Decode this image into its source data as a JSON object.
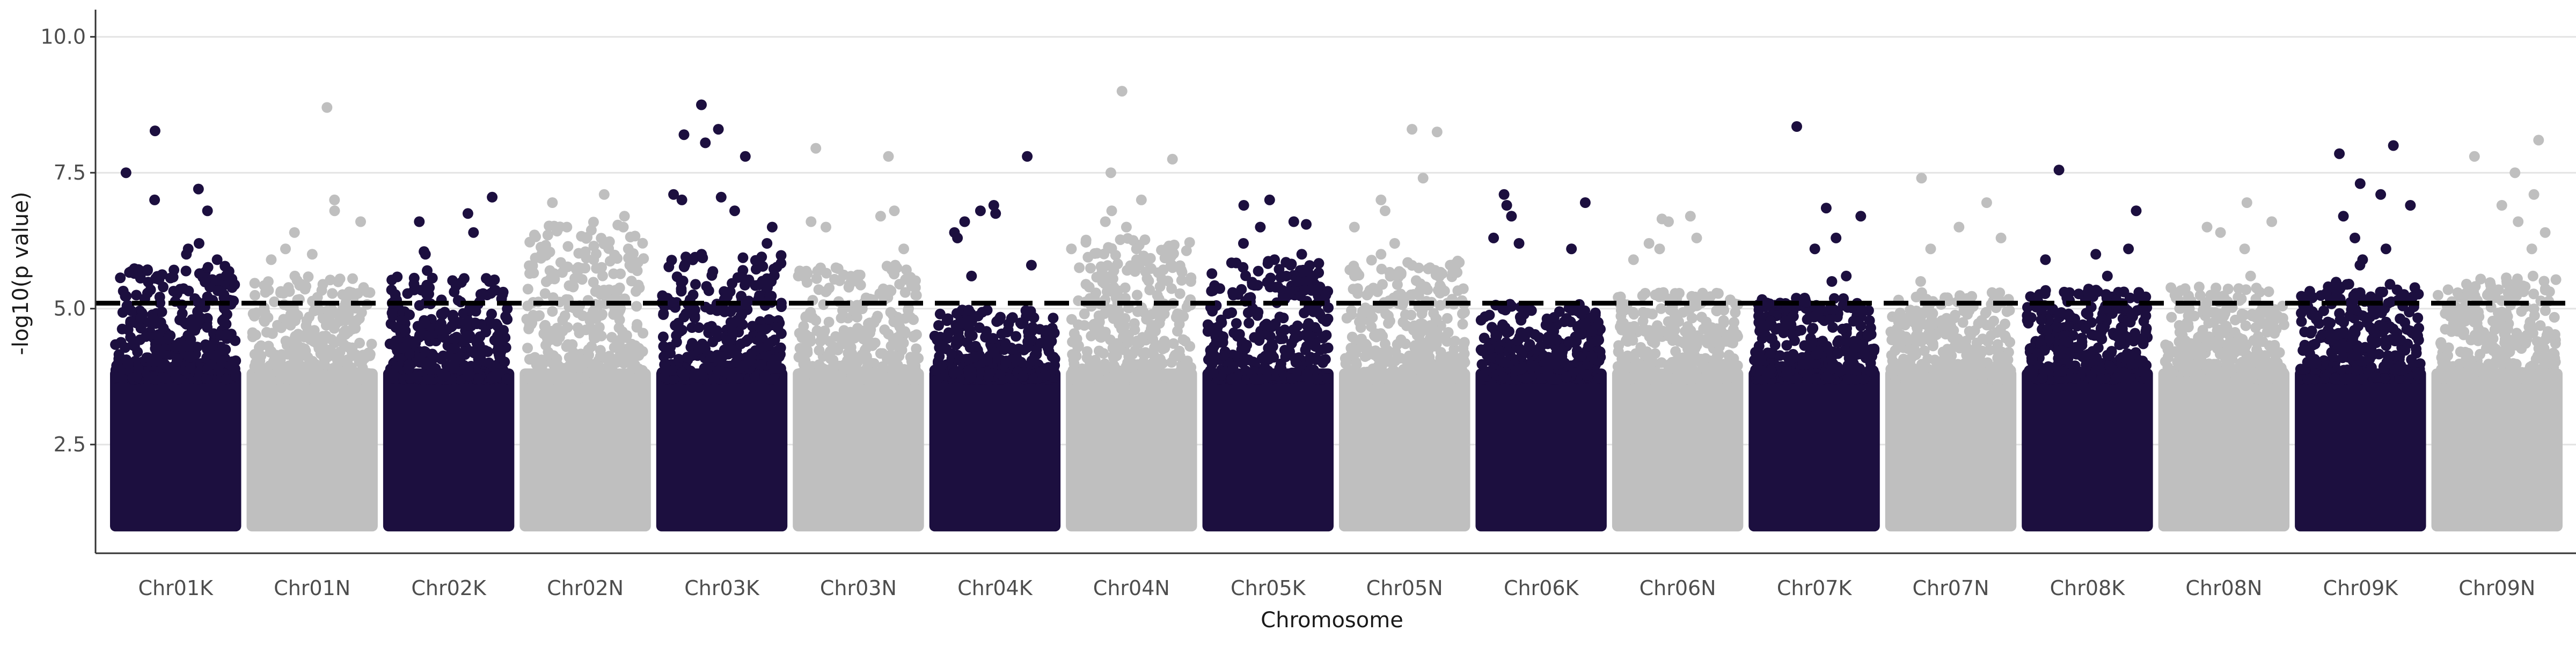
{
  "chart_data": {
    "type": "scatter",
    "title": "",
    "xlabel": "Chromosome",
    "ylabel": "-log10(p value)",
    "ylim": [
      0.5,
      10.5
    ],
    "yticks": [
      2.5,
      5.0,
      7.5,
      10.0
    ],
    "ytick_labels": [
      "2.5",
      "5.0",
      "7.5",
      "10.0"
    ],
    "grid": "horizontal major lines only",
    "legend": "none",
    "threshold": 5.1,
    "threshold_style": "dashed black",
    "colors": {
      "odd": "#1c0f3f",
      "even": "#bfbfbf"
    },
    "categories": [
      "Chr01K",
      "Chr01N",
      "Chr02K",
      "Chr02N",
      "Chr03K",
      "Chr03N",
      "Chr04K",
      "Chr04N",
      "Chr05K",
      "Chr05N",
      "Chr06K",
      "Chr06N",
      "Chr07K",
      "Chr07N",
      "Chr08K",
      "Chr08N",
      "Chr09K",
      "Chr09N"
    ],
    "peaks": [
      [
        8.27,
        7.5,
        7.2,
        7.0,
        6.8,
        6.2,
        6.1,
        6.0,
        5.9,
        5.7
      ],
      [
        8.7,
        7.0,
        6.8,
        6.6,
        6.4,
        6.1,
        6.0,
        5.9,
        5.6
      ],
      [
        7.05,
        6.75,
        6.6,
        6.4,
        6.05,
        6.0,
        5.7,
        5.5
      ],
      [
        7.1,
        6.95,
        6.7,
        6.5,
        6.1,
        6.0,
        5.9
      ],
      [
        8.75,
        8.3,
        8.2,
        8.05,
        7.8,
        7.1,
        7.05,
        7.0,
        6.8,
        6.5,
        6.2,
        6.0
      ],
      [
        7.95,
        7.8,
        6.8,
        6.7,
        6.6,
        6.5,
        6.1,
        5.8
      ],
      [
        7.8,
        6.9,
        6.8,
        6.75,
        6.6,
        6.4,
        6.3,
        5.8,
        5.6
      ],
      [
        9.0,
        7.75,
        7.5,
        7.0,
        6.8,
        6.6,
        6.5,
        6.1,
        5.9
      ],
      [
        7.0,
        6.9,
        6.6,
        6.55,
        6.5,
        6.2,
        6.0,
        5.9,
        5.8
      ],
      [
        8.3,
        8.25,
        7.4,
        7.0,
        6.8,
        6.5,
        6.2,
        6.0
      ],
      [
        7.1,
        6.95,
        6.9,
        6.7,
        6.3,
        6.2,
        6.1
      ],
      [
        6.7,
        6.65,
        6.6,
        6.3,
        6.2,
        6.1,
        5.9
      ],
      [
        8.35,
        6.85,
        6.7,
        6.3,
        6.1,
        5.6,
        5.5
      ],
      [
        7.4,
        6.95,
        6.5,
        6.3,
        6.1,
        5.5
      ],
      [
        7.55,
        6.8,
        6.1,
        6.0,
        5.9,
        5.6
      ],
      [
        6.95,
        6.6,
        6.5,
        6.4,
        6.1,
        5.6
      ],
      [
        8.0,
        7.85,
        7.3,
        7.1,
        6.9,
        6.7,
        6.3,
        6.1,
        5.9,
        5.8
      ],
      [
        8.1,
        7.8,
        7.5,
        7.1,
        6.9,
        6.6,
        6.4,
        6.1
      ]
    ],
    "baseline_max": [
      5.8,
      5.6,
      5.6,
      6.6,
      6.0,
      5.8,
      5.0,
      6.3,
      5.9,
      5.9,
      5.1,
      5.3,
      5.2,
      5.3,
      5.4,
      5.4,
      5.5,
      5.6
    ]
  }
}
